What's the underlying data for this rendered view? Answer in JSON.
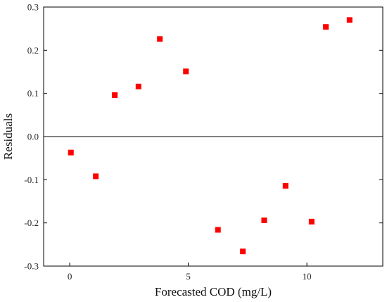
{
  "chart_data": {
    "type": "scatter",
    "title": "",
    "xlabel": "Forecasted COD (mg/L)",
    "ylabel": "Residuals",
    "xlim": [
      -1.1,
      13.2
    ],
    "ylim": [
      -0.3,
      0.3
    ],
    "x_ticks": [
      0,
      5,
      10
    ],
    "y_ticks": [
      -0.3,
      -0.2,
      -0.1,
      0.0,
      0.1,
      0.2,
      0.3
    ],
    "x_tick_labels": [
      "0",
      "5",
      "10"
    ],
    "y_tick_labels": [
      "-0.3",
      "-0.2",
      "-0.1",
      "0.0",
      "0.1",
      "0.2",
      "0.3"
    ],
    "reference_line_y": 0,
    "grid": false,
    "marker": "square",
    "marker_color": "#ff0000",
    "points": [
      {
        "x": 0.05,
        "y": -0.037
      },
      {
        "x": 1.1,
        "y": -0.092
      },
      {
        "x": 1.9,
        "y": 0.096
      },
      {
        "x": 2.9,
        "y": 0.116
      },
      {
        "x": 3.8,
        "y": 0.226
      },
      {
        "x": 4.9,
        "y": 0.151
      },
      {
        "x": 6.25,
        "y": -0.216
      },
      {
        "x": 7.3,
        "y": -0.266
      },
      {
        "x": 8.2,
        "y": -0.194
      },
      {
        "x": 9.1,
        "y": -0.114
      },
      {
        "x": 10.2,
        "y": -0.197
      },
      {
        "x": 10.8,
        "y": 0.254
      },
      {
        "x": 11.8,
        "y": 0.27
      }
    ]
  }
}
